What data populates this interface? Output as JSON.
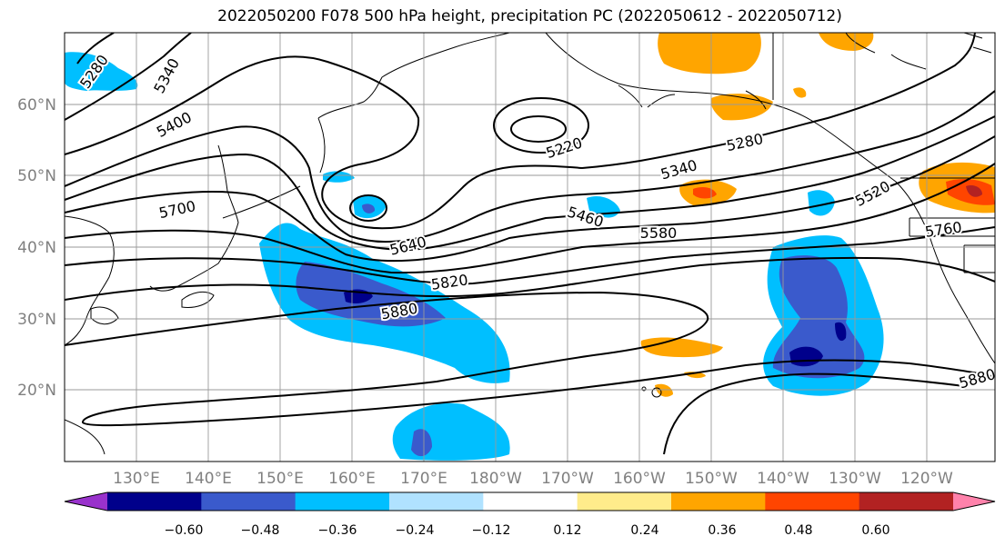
{
  "title": "2022050200 F078 500 hPa height, precipitation PC (2022050612 - 2022050712)",
  "map": {
    "lon_range_deg_east": [
      120,
      250
    ],
    "lat_range": [
      10,
      70
    ],
    "gridlines": true,
    "lat_ticks": [
      "20°N",
      "30°N",
      "40°N",
      "50°N",
      "60°N"
    ],
    "lon_ticks": [
      "130°E",
      "140°E",
      "150°E",
      "160°E",
      "170°E",
      "180°W",
      "170°W",
      "160°W",
      "150°W",
      "140°W",
      "130°W",
      "120°W"
    ],
    "contour_labels": [
      {
        "text": "5280",
        "lon": 124,
        "lat": 65
      },
      {
        "text": "5340",
        "lon": 135,
        "lat": 62
      },
      {
        "text": "5400",
        "lon": 135,
        "lat": 56
      },
      {
        "text": "5700",
        "lon": 133,
        "lat": 45
      },
      {
        "text": "5640",
        "lon": 168,
        "lat": 40
      },
      {
        "text": "5820",
        "lon": 173,
        "lat": 33
      },
      {
        "text": "5880",
        "lon": 166,
        "lat": 30
      },
      {
        "text": "5220",
        "lon": 185,
        "lat": 54
      },
      {
        "text": "5280",
        "lon": 213,
        "lat": 54
      },
      {
        "text": "5340",
        "lon": 204,
        "lat": 49
      },
      {
        "text": "5460",
        "lon": 191,
        "lat": 44
      },
      {
        "text": "5580",
        "lon": 201,
        "lat": 41
      },
      {
        "text": "5520",
        "lon": 232,
        "lat": 47
      },
      {
        "text": "5760",
        "lon": 241,
        "lat": 42
      },
      {
        "text": "5880",
        "lon": 245,
        "lat": 21
      }
    ]
  },
  "colorbar": {
    "tick_labels": [
      "−0.60",
      "−0.48",
      "−0.36",
      "−0.24",
      "−0.12",
      "0.12",
      "0.24",
      "0.36",
      "0.48",
      "0.60"
    ],
    "colors": [
      "#9932cc",
      "#00008b",
      "#3a5acc",
      "#00bfff",
      "#b0e2ff",
      "#ffffff",
      "#ffec8b",
      "#ffa500",
      "#ff4500",
      "#b22222",
      "#ff82ab"
    ]
  }
}
